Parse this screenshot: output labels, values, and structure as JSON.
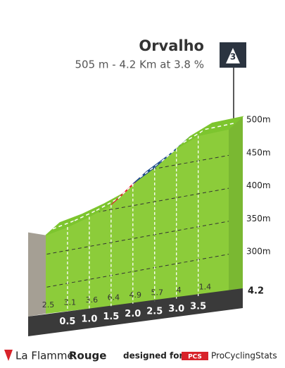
{
  "header": {
    "title": "Orvalho",
    "subtitle": "505 m - 4.2 Km at 3.8 %",
    "category": "3"
  },
  "chart_data": {
    "type": "profile",
    "summit": 505,
    "xlim": [
      0,
      4.2
    ],
    "xticks": [
      0.5,
      {
        "value": 1,
        "label": "1.0"
      },
      1.5,
      {
        "value": 2,
        "label": "2.0"
      },
      2.5,
      {
        "value": 3,
        "label": "3.0"
      },
      3.5
    ],
    "ylim": [
      300,
      500
    ],
    "yticks": [
      {
        "value": 300,
        "label": "300m"
      },
      {
        "value": 350,
        "label": "350m"
      },
      {
        "value": 400,
        "label": "400m"
      },
      {
        "value": 450,
        "label": "450m"
      },
      {
        "value": 500,
        "label": "500m"
      }
    ],
    "values": [
      2.5,
      3.1,
      3.6,
      6.4,
      4.9,
      5.7,
      4.0,
      1.4
    ],
    "colors": [
      "#7dc52e",
      "#7dc52e",
      "#7dc52e",
      "#e3202f",
      "#1f4e8c",
      "#1f4e8c",
      "#7dc52e",
      "#7dc52e"
    ]
  },
  "footer": {
    "brand_a": "La Flamme",
    "brand_b": "Rouge",
    "designed_for": "designed for",
    "pcs": "PCS",
    "pcs_name": "ProCyclingStats"
  }
}
